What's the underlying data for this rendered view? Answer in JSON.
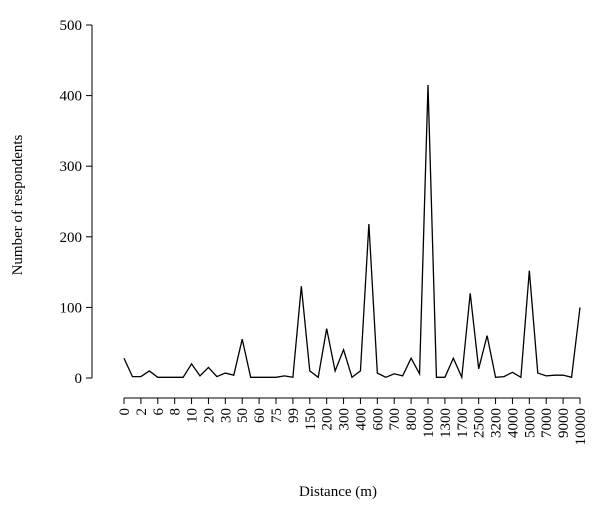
{
  "chart_data": {
    "type": "line",
    "x_label": "Distance (m)",
    "y_label": "Number of respondents",
    "categories": [
      "0",
      null,
      "2",
      null,
      "6",
      null,
      "8",
      null,
      "10",
      null,
      "20",
      null,
      "30",
      null,
      "50",
      null,
      "60",
      null,
      "75",
      null,
      "99",
      null,
      "150",
      null,
      "200",
      null,
      "300",
      null,
      "400",
      null,
      "600",
      null,
      "700",
      null,
      "800",
      null,
      "1000",
      null,
      "1300",
      null,
      "1700",
      null,
      "2500",
      null,
      "3200",
      null,
      "4000",
      null,
      "5000",
      null,
      "7000",
      null,
      "9000",
      null,
      "10000"
    ],
    "series": [
      {
        "color": "#000000",
        "values": [
          28,
          2,
          2,
          10,
          1,
          1,
          1,
          1,
          20,
          3,
          15,
          2,
          7,
          4,
          55,
          1,
          1,
          1,
          1,
          3,
          1,
          130,
          10,
          1,
          70,
          10,
          40,
          1,
          10,
          218,
          7,
          1,
          6,
          3,
          28,
          6,
          415,
          1,
          1,
          28,
          1,
          120,
          13,
          60,
          1,
          2,
          8,
          1,
          152,
          7,
          3,
          4,
          4,
          1,
          100
        ]
      }
    ],
    "ylim": [
      0,
      500
    ],
    "yticks": [
      0,
      100,
      200,
      300,
      400,
      500
    ]
  }
}
